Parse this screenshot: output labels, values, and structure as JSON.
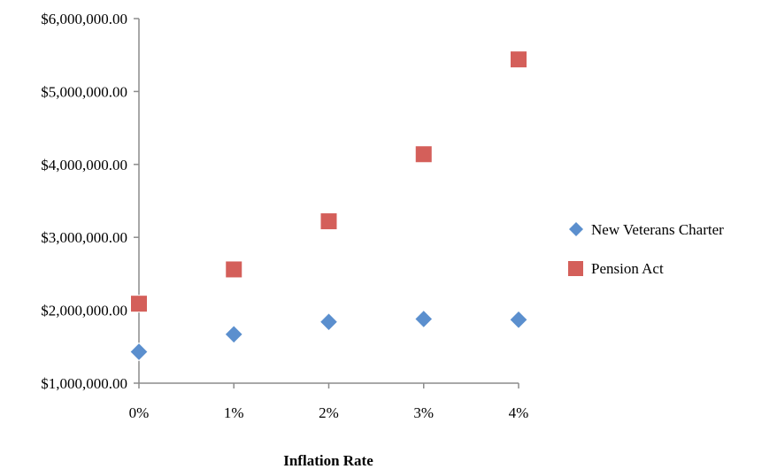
{
  "chart_data": {
    "type": "scatter",
    "title": "",
    "xlabel": "Inflation Rate",
    "ylabel": "",
    "x": [
      "0%",
      "1%",
      "2%",
      "3%",
      "4%"
    ],
    "ylim": [
      1000000,
      6000000
    ],
    "yticks": [
      1000000,
      2000000,
      3000000,
      4000000,
      5000000,
      6000000
    ],
    "ytick_labels": [
      "$1,000,000.00",
      "$2,000,000.00",
      "$3,000,000.00",
      "$4,000,000.00",
      "$5,000,000.00",
      "$6,000,000.00"
    ],
    "grid": false,
    "legend_position": "right",
    "series": [
      {
        "name": "New Veterans Charter",
        "marker": "diamond",
        "color": "#5b8fce",
        "values": [
          1430000,
          1670000,
          1840000,
          1880000,
          1870000
        ]
      },
      {
        "name": "Pension Act",
        "marker": "square",
        "color": "#d45f5a",
        "values": [
          2090000,
          2560000,
          3220000,
          4140000,
          5440000
        ]
      }
    ]
  }
}
